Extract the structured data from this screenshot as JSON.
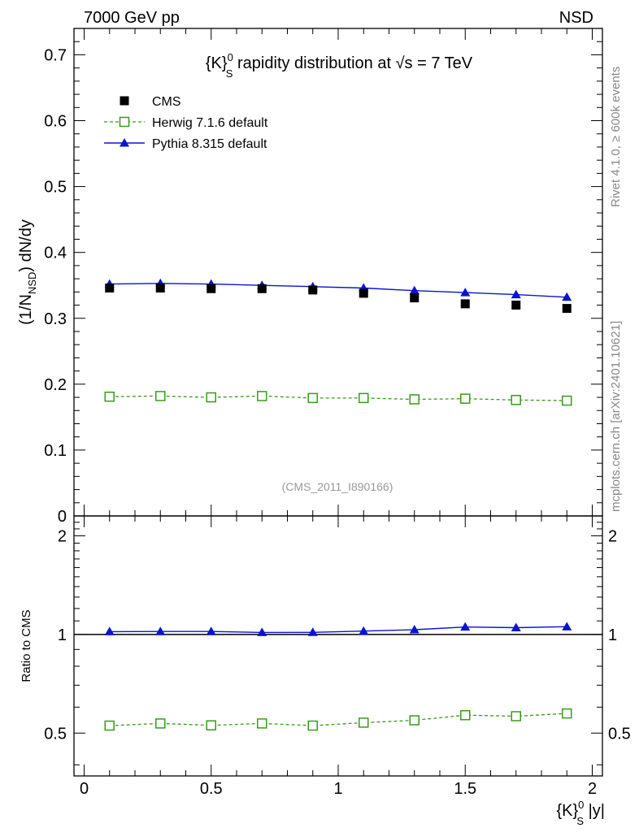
{
  "header": {
    "left": "7000 GeV pp",
    "right": "NSD"
  },
  "side_labels": {
    "rivet": "Rivet 4.1.0, ≥ 600k events",
    "mcplots": "mcplots.cern.ch [arXiv:2401.10621]"
  },
  "watermark": "(CMS_2011_I890166)",
  "colors": {
    "cms": "#000000",
    "herwig": "#3a9a1a",
    "pythia": "#0a14d0",
    "axis": "#000000",
    "watermark": "#999999",
    "side": "#888888"
  },
  "chart_data": [
    {
      "type": "scatter",
      "panel": "main",
      "title": {
        "prefix": "{K}",
        "sup": "0",
        "sub": "S",
        "main": " rapidity distribution at √s = 7 TeV"
      },
      "ylabel": {
        "a": "(1/N",
        "sub": "NSD",
        "b": ") dN/dy"
      },
      "xlabel": "",
      "xlim": [
        -0.04,
        2.04
      ],
      "ylim": [
        0,
        0.74
      ],
      "yticks": [
        {
          "v": 0,
          "label": "0"
        },
        {
          "v": 0.1,
          "label": "0.1"
        },
        {
          "v": 0.2,
          "label": "0.2"
        },
        {
          "v": 0.3,
          "label": "0.3"
        },
        {
          "v": 0.4,
          "label": "0.4"
        },
        {
          "v": 0.5,
          "label": "0.5"
        },
        {
          "v": 0.6,
          "label": "0.6"
        },
        {
          "v": 0.7,
          "label": "0.7"
        }
      ],
      "x": [
        0.1,
        0.3,
        0.5,
        0.7,
        0.9,
        1.1,
        1.3,
        1.5,
        1.7,
        1.9
      ],
      "series": [
        {
          "name": "CMS",
          "key": "cms",
          "values": [
            0.346,
            0.346,
            0.345,
            0.345,
            0.343,
            0.338,
            0.331,
            0.322,
            0.32,
            0.315
          ]
        },
        {
          "name": "Herwig 7.1.6 default",
          "key": "herwig",
          "values": [
            0.181,
            0.182,
            0.18,
            0.182,
            0.179,
            0.179,
            0.177,
            0.178,
            0.176,
            0.175
          ]
        },
        {
          "name": "Pythia 8.315 default",
          "key": "pythia",
          "values": [
            0.352,
            0.353,
            0.352,
            0.35,
            0.348,
            0.346,
            0.342,
            0.339,
            0.336,
            0.332
          ]
        }
      ],
      "legend": {
        "position": "top-left",
        "items": [
          "CMS",
          "Herwig 7.1.6 default",
          "Pythia 8.315 default"
        ]
      }
    },
    {
      "type": "line",
      "panel": "ratio",
      "ylabel": "Ratio to CMS",
      "xlabel": {
        "prefix": "{K}",
        "sup": "0",
        "sub": "S",
        "main": " |y|"
      },
      "xlim": [
        -0.04,
        2.04
      ],
      "ylim": [
        0.37,
        2.3
      ],
      "xticks": [
        {
          "v": 0,
          "label": "0"
        },
        {
          "v": 0.5,
          "label": "0.5"
        },
        {
          "v": 1,
          "label": "1"
        },
        {
          "v": 1.5,
          "label": "1.5"
        },
        {
          "v": 2,
          "label": "2"
        }
      ],
      "yticks": [
        {
          "v": 0.5,
          "label": "0.5"
        },
        {
          "v": 1,
          "label": "1"
        },
        {
          "v": 2,
          "label": "2"
        }
      ],
      "reference": 1,
      "x": [
        0.1,
        0.3,
        0.5,
        0.7,
        0.9,
        1.1,
        1.3,
        1.5,
        1.7,
        1.9
      ],
      "series": [
        {
          "name": "Herwig 7.1.6 default",
          "key": "herwig",
          "values": [
            0.527,
            0.535,
            0.528,
            0.535,
            0.527,
            0.538,
            0.547,
            0.567,
            0.563,
            0.574
          ]
        },
        {
          "name": "Pythia 8.315 default",
          "key": "pythia",
          "values": [
            1.02,
            1.021,
            1.021,
            1.014,
            1.015,
            1.024,
            1.034,
            1.054,
            1.049,
            1.056
          ]
        }
      ]
    }
  ]
}
